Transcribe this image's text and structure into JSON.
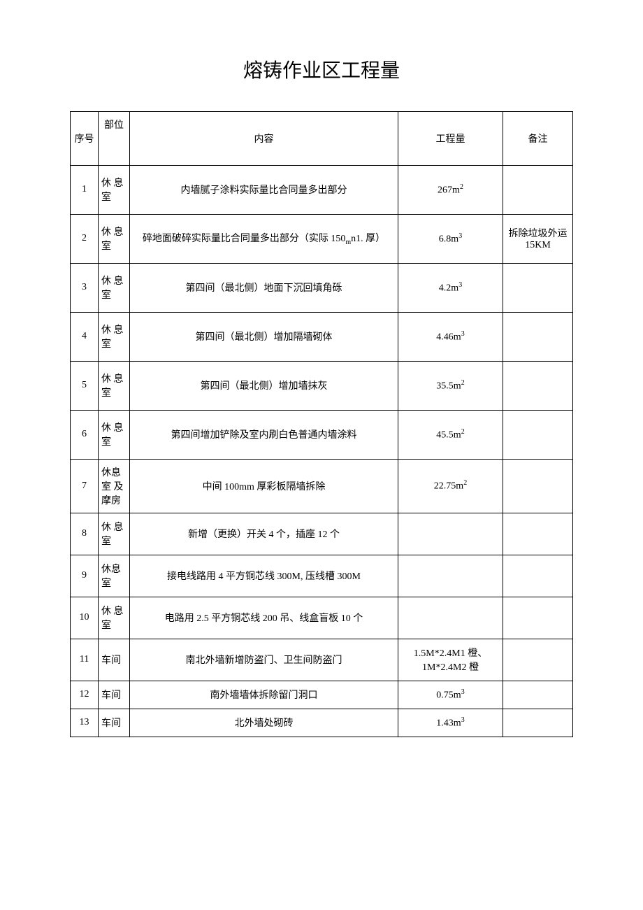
{
  "title": "熔铸作业区工程量",
  "headers": {
    "seq": "序号",
    "position": "部位",
    "content": "内容",
    "quantity": "工程量",
    "remark": "备注"
  },
  "rows": [
    {
      "seq": "1",
      "position": "休 息室",
      "content": "内墙腻子涂料实际量比合同量多出部分",
      "quantity": "267m²",
      "remark": "",
      "height": "row-tall"
    },
    {
      "seq": "2",
      "position": "休 息室",
      "content": "碎地面破碎实际量比合同量多出部分（实际 150ₘn1. 厚）",
      "quantity": "6.8m³",
      "remark": "拆除垃圾外运15KM",
      "height": "row-tall"
    },
    {
      "seq": "3",
      "position": "休 息室",
      "content": "第四间（最北侧）地面下沉回填角砾",
      "quantity": "4.2m³",
      "remark": "",
      "height": "row-tall"
    },
    {
      "seq": "4",
      "position": "休 息室",
      "content": "第四间（最北侧）增加隔墙砌体",
      "quantity": "4.46m³",
      "remark": "",
      "height": "row-tall"
    },
    {
      "seq": "5",
      "position": "休 息室",
      "content": "第四间（最北侧）增加墙抹灰",
      "quantity": "35.5m²",
      "remark": "",
      "height": "row-tall"
    },
    {
      "seq": "6",
      "position": "休 息室",
      "content": "第四间增加铲除及室内刷白色普通内墙涂料",
      "quantity": "45.5m²",
      "remark": "",
      "height": "row-tall"
    },
    {
      "seq": "7",
      "position": "休息室 及 摩房",
      "content": "中间 100mm 厚彩板隔墙拆除",
      "quantity": "22.75m²",
      "remark": "",
      "height": "row-tall"
    },
    {
      "seq": "8",
      "position": "休 息室",
      "content": "新增（更换）开关 4 个，插座 12 个",
      "quantity": "",
      "remark": "",
      "height": "row-med"
    },
    {
      "seq": "9",
      "position": "休息室",
      "content": "接电线路用 4 平方铜芯线 300M, 压线槽 300M",
      "quantity": "",
      "remark": "",
      "height": "row-med"
    },
    {
      "seq": "10",
      "position": "休 息室",
      "content": "电路用 2.5 平方铜芯线 200 吊、线盒盲板 10 个",
      "quantity": "",
      "remark": "",
      "height": "row-med"
    },
    {
      "seq": "11",
      "position": "车间",
      "content": "南北外墙新增防盗门、卫生间防盗门",
      "quantity": "1.5M*2.4M1 橙、1M*2.4M2 橙",
      "remark": "",
      "height": "row-med"
    },
    {
      "seq": "12",
      "position": "车间",
      "content": "南外墙墙体拆除留门洞口",
      "quantity": "0.75m³",
      "remark": "",
      "height": "row-short"
    },
    {
      "seq": "13",
      "position": "车间",
      "content": "北外墙处砌砖",
      "quantity": "1.43m³",
      "remark": "",
      "height": "row-short"
    }
  ],
  "colors": {
    "background": "#ffffff",
    "text": "#000000",
    "border": "#000000"
  }
}
